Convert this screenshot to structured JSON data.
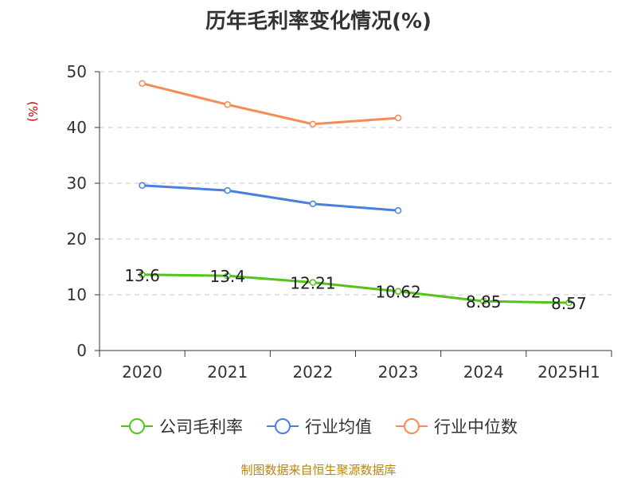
{
  "title": "历年毛利率变化情况(%)",
  "ylabel": "(%)",
  "source": "制图数据来自恒生聚源数据库",
  "colors": {
    "company": "#52c41a",
    "industry_avg": "#4a7fdb",
    "industry_median": "#f58c55"
  },
  "chart_data": {
    "type": "line",
    "title": "历年毛利率变化情况(%)",
    "xlabel": "",
    "ylabel": "(%)",
    "categories": [
      "2020",
      "2021",
      "2022",
      "2023",
      "2024",
      "2025H1"
    ],
    "yticks": [
      "0",
      "10",
      "20",
      "30",
      "40",
      "50"
    ],
    "ylim": [
      0,
      50
    ],
    "grid": true,
    "legend": "bottom",
    "series": [
      {
        "name": "公司毛利率",
        "color": "#52c41a",
        "values": [
          13.6,
          13.4,
          12.21,
          10.62,
          8.85,
          8.57
        ],
        "labels": [
          "13.6",
          "13.4",
          "12.21",
          "10.62",
          "8.85",
          "8.57"
        ]
      },
      {
        "name": "行业均值",
        "color": "#4a7fdb",
        "values": [
          29.6,
          28.7,
          26.3,
          25.1,
          null,
          null
        ]
      },
      {
        "name": "行业中位数",
        "color": "#f58c55",
        "values": [
          47.9,
          44.1,
          40.6,
          41.7,
          null,
          null
        ]
      }
    ]
  }
}
